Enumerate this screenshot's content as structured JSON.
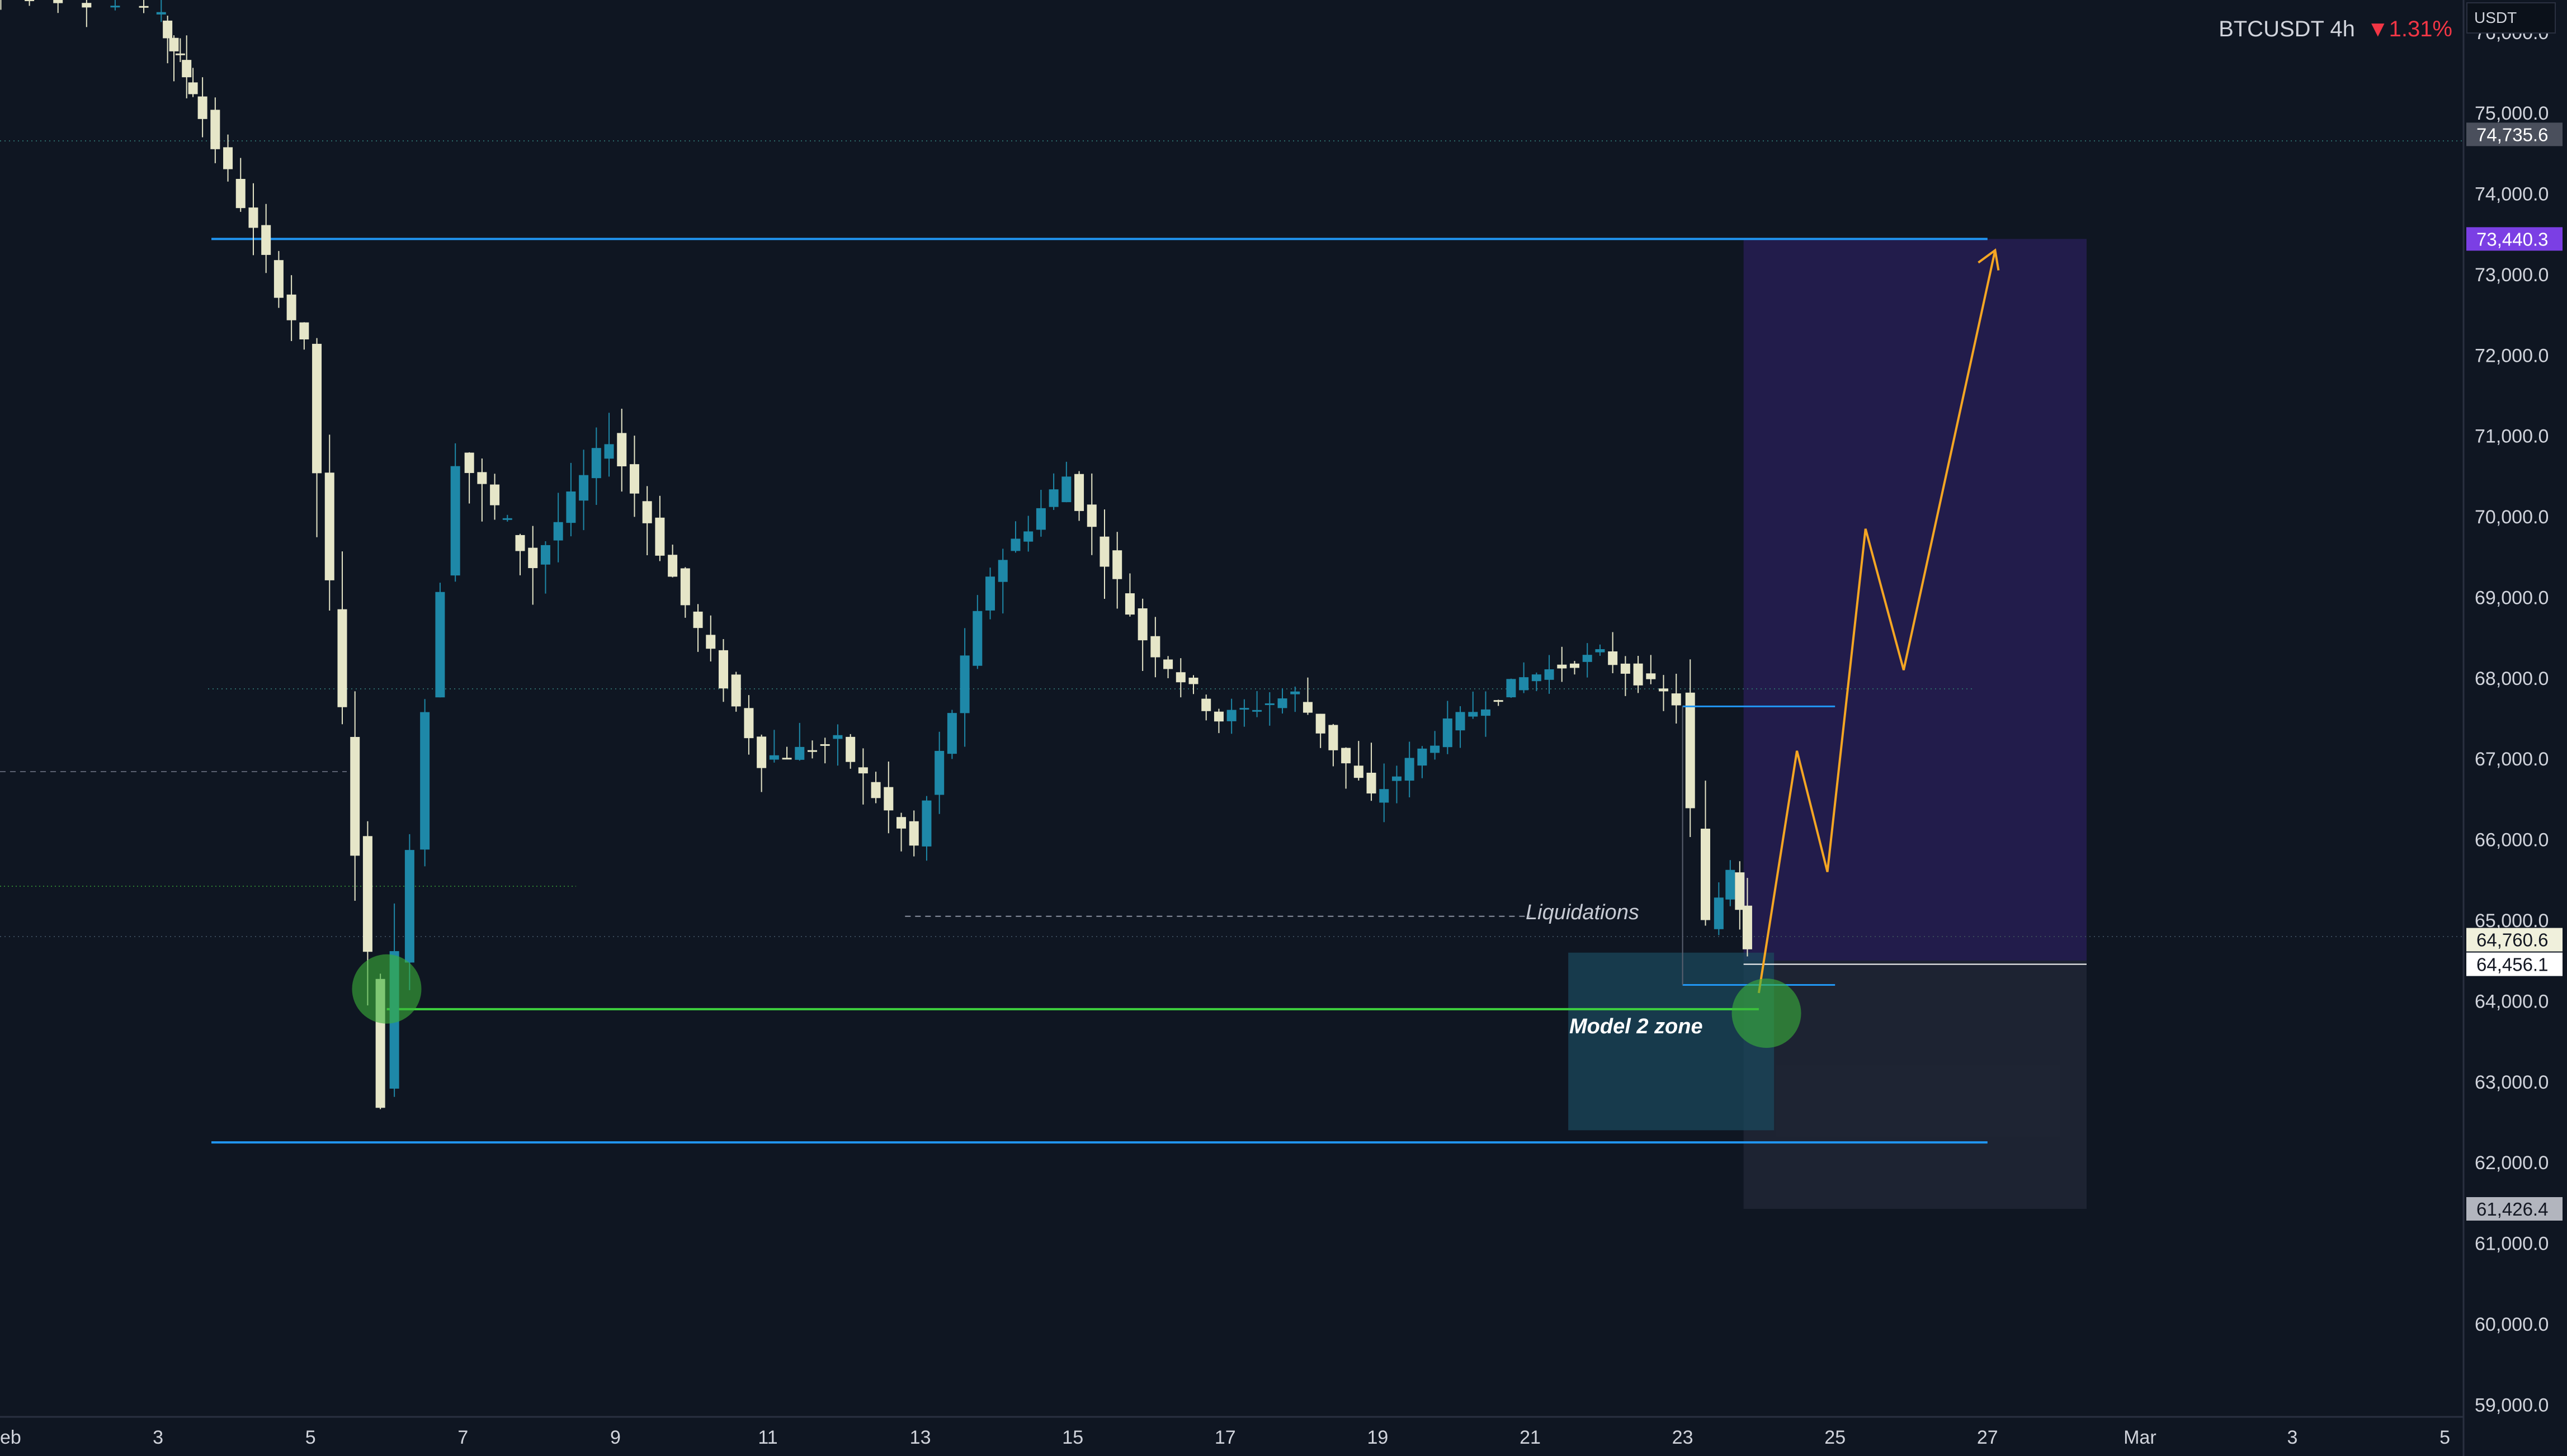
{
  "header": {
    "symbol": "BTCUSDT",
    "interval": "4h",
    "change_arrow": "▼",
    "change": "1.31%",
    "change_color": "#f23645"
  },
  "unit_label": "USDT",
  "annotations": {
    "liquidations": "Liquidations",
    "model_zone": "Model 2 zone"
  },
  "colors": {
    "background": "#0f1622",
    "bull_candle": "#1e88a8",
    "bear_candle": "#e6e6c8",
    "level_line": "#2196f3",
    "green_line": "#3ed13e",
    "projection": "#f5a623",
    "target_zone": "#2a1f5a",
    "risk_zone": "#2a3040",
    "model_zone": "#1b4a5e"
  },
  "chart_data": {
    "type": "candlestick",
    "title": "BTCUSDT 4h",
    "x_ticks": [
      "eb",
      "3",
      "5",
      "7",
      "9",
      "11",
      "13",
      "15",
      "17",
      "19",
      "21",
      "23",
      "25",
      "27",
      "Mar",
      "3",
      "5"
    ],
    "y_ticks": [
      "59,000.0",
      "60,000.0",
      "61,000.0",
      "62,000.0",
      "63,000.0",
      "64,000.0",
      "65,000.0",
      "66,000.0",
      "67,000.0",
      "68,000.0",
      "69,000.0",
      "70,000.0",
      "71,000.0",
      "72,000.0",
      "73,000.0",
      "74,000.0",
      "75,000.0",
      "76,000.0"
    ],
    "ylim": [
      58850,
      76400
    ],
    "price_tags": [
      {
        "label": "74,735.6",
        "value": 74735.6,
        "bg": "#4a4f5c",
        "fg": "#ffffff"
      },
      {
        "label": "73,440.3",
        "value": 73440.3,
        "bg": "#7b3fe4",
        "fg": "#ffffff"
      },
      {
        "label": "64,760.6",
        "value": 64760.6,
        "bg": "#f0f0dc",
        "fg": "#131722"
      },
      {
        "label": "64,456.1",
        "value": 64456.1,
        "bg": "#ffffff",
        "fg": "#131722"
      },
      {
        "label": "61,426.4",
        "value": 61426.4,
        "bg": "#b2b5be",
        "fg": "#131722"
      }
    ],
    "levels": {
      "upper": 73440.3,
      "lower": 62250,
      "green": 63900,
      "liquidations": 65050
    },
    "segments": [
      {
        "from": [
          0,
          76600
        ],
        "to": [
          3,
          76300
        ],
        "steps": 8,
        "vol": 250
      },
      {
        "from": [
          3,
          76300
        ],
        "to": [
          3.5,
          75300
        ],
        "steps": 6,
        "vol": 400
      },
      {
        "from": [
          3.5,
          75300
        ],
        "to": [
          5,
          72100
        ],
        "steps": 9,
        "vol": 350
      },
      {
        "from": [
          5,
          72100
        ],
        "to": [
          6,
          62900
        ],
        "steps": 6,
        "vol": 800
      },
      {
        "from": [
          6,
          62900
        ],
        "to": [
          7,
          70800
        ],
        "steps": 5,
        "vol": 700
      },
      {
        "from": [
          7,
          70800
        ],
        "to": [
          8,
          69400
        ],
        "steps": 6,
        "vol": 500
      },
      {
        "from": [
          8,
          69400
        ],
        "to": [
          9,
          71000
        ],
        "steps": 6,
        "vol": 400
      },
      {
        "from": [
          9,
          71000
        ],
        "to": [
          10,
          68900
        ],
        "steps": 6,
        "vol": 400
      },
      {
        "from": [
          10,
          68900
        ],
        "to": [
          11,
          67000
        ],
        "steps": 6,
        "vol": 400
      },
      {
        "from": [
          11,
          67000
        ],
        "to": [
          12,
          67200
        ],
        "steps": 6,
        "vol": 350
      },
      {
        "from": [
          12,
          67200
        ],
        "to": [
          13,
          65900
        ],
        "steps": 6,
        "vol": 400
      },
      {
        "from": [
          13,
          65900
        ],
        "to": [
          14,
          69300
        ],
        "steps": 6,
        "vol": 450
      },
      {
        "from": [
          14,
          69300
        ],
        "to": [
          15,
          70500
        ],
        "steps": 6,
        "vol": 400
      },
      {
        "from": [
          15,
          70500
        ],
        "to": [
          16,
          68500
        ],
        "steps": 6,
        "vol": 400
      },
      {
        "from": [
          16,
          68500
        ],
        "to": [
          17,
          67500
        ],
        "steps": 6,
        "vol": 350
      },
      {
        "from": [
          17,
          67500
        ],
        "to": [
          18,
          67800
        ],
        "steps": 6,
        "vol": 300
      },
      {
        "from": [
          18,
          67800
        ],
        "to": [
          19,
          66500
        ],
        "steps": 6,
        "vol": 400
      },
      {
        "from": [
          19,
          66500
        ],
        "to": [
          20,
          67400
        ],
        "steps": 6,
        "vol": 350
      },
      {
        "from": [
          20,
          67400
        ],
        "to": [
          21,
          68000
        ],
        "steps": 6,
        "vol": 300
      },
      {
        "from": [
          21,
          68000
        ],
        "to": [
          22,
          68300
        ],
        "steps": 6,
        "vol": 250
      },
      {
        "from": [
          22,
          68300
        ],
        "to": [
          23,
          67700
        ],
        "steps": 6,
        "vol": 300
      },
      {
        "from": [
          23,
          67700
        ],
        "to": [
          23.4,
          64900
        ],
        "steps": 2,
        "vol": 600
      },
      {
        "from": [
          23.4,
          64900
        ],
        "to": [
          23.7,
          65700
        ],
        "steps": 2,
        "vol": 500
      },
      {
        "from": [
          23.7,
          65700
        ],
        "to": [
          23.9,
          64760
        ],
        "steps": 2,
        "vol": 500
      }
    ],
    "projection_path": [
      [
        24.0,
        64100
      ],
      [
        24.5,
        67100
      ],
      [
        24.9,
        65600
      ],
      [
        25.4,
        69850
      ],
      [
        25.9,
        68100
      ],
      [
        27.1,
        73300
      ]
    ],
    "green_circles": [
      [
        6.0,
        64150
      ],
      [
        24.1,
        63850
      ]
    ],
    "target_zone": {
      "x": [
        23.8,
        28.3
      ],
      "y": [
        64500,
        73440.3
      ]
    },
    "risk_zone": {
      "x": [
        23.8,
        28.3
      ],
      "y": [
        61426.4,
        64500
      ]
    },
    "model_zone": {
      "x": [
        21.5,
        24.2
      ],
      "y": [
        62400,
        64600
      ]
    },
    "entry_level": {
      "x": [
        23.8,
        28.3
      ],
      "y": 64456.1
    },
    "small_box": {
      "x": [
        23.0,
        25.0
      ],
      "top": 67650,
      "bottom": 64200
    }
  }
}
